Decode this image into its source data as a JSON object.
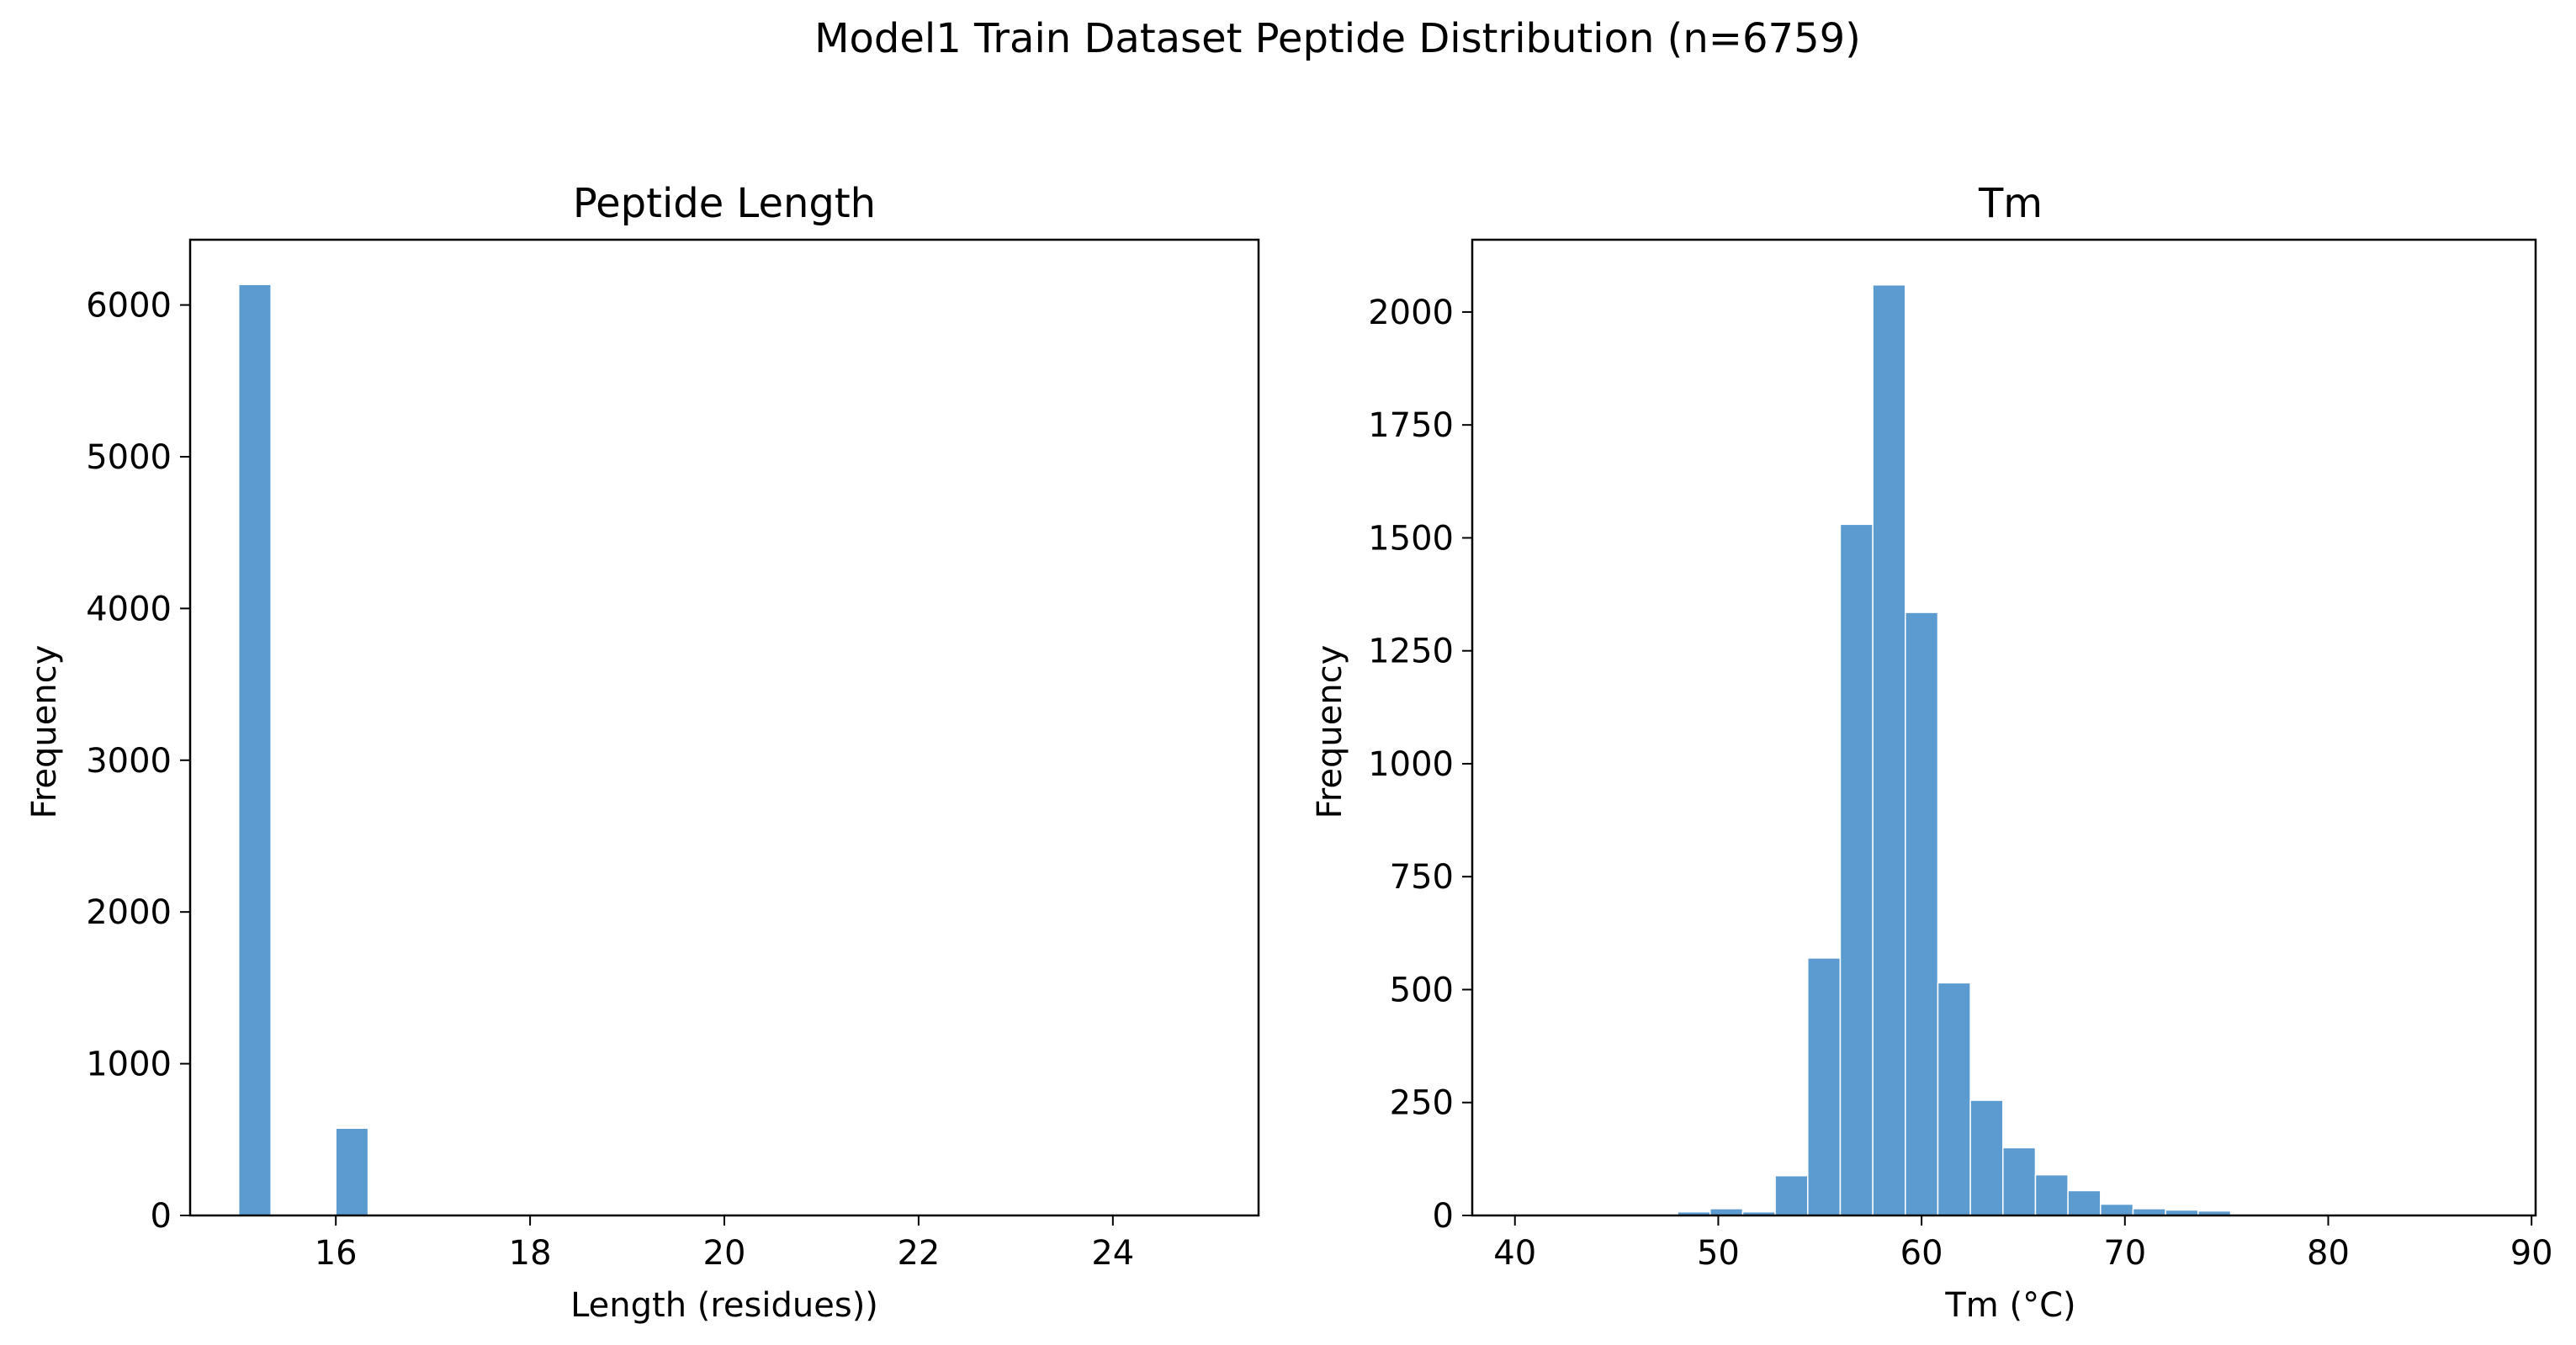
{
  "figure": {
    "suptitle": "Model1 Train Dataset Peptide Distribution (n=6759)"
  },
  "chart_data": [
    {
      "type": "bar",
      "subtype": "histogram",
      "title": "Peptide Length",
      "xlabel": "Length (residues))",
      "ylabel": "Frequency",
      "xlim": [
        14.5,
        25.5
      ],
      "ylim": [
        0,
        6430
      ],
      "xticks": [
        "16",
        "18",
        "20",
        "22",
        "24"
      ],
      "xtick_values": [
        16,
        18,
        20,
        22,
        24
      ],
      "yticks": [
        "0",
        "1000",
        "2000",
        "3000",
        "4000",
        "5000",
        "6000"
      ],
      "ytick_values": [
        0,
        1000,
        2000,
        3000,
        4000,
        5000,
        6000
      ],
      "bin_width": 0.333,
      "bins": [
        {
          "x": 15.0,
          "value": 6135
        },
        {
          "x": 16.0,
          "value": 575
        },
        {
          "x": 17.0,
          "value": 0
        },
        {
          "x": 18.0,
          "value": 0
        },
        {
          "x": 19.0,
          "value": 0
        },
        {
          "x": 20.0,
          "value": 10
        },
        {
          "x": 21.0,
          "value": 0
        },
        {
          "x": 22.0,
          "value": 0
        },
        {
          "x": 23.0,
          "value": 0
        },
        {
          "x": 24.0,
          "value": 0
        },
        {
          "x": 25.0,
          "value": 0
        }
      ],
      "bar_color": "#5b9bd0",
      "grid": false,
      "legend": "none"
    },
    {
      "type": "bar",
      "subtype": "histogram",
      "title": "Tm",
      "xlabel": "Tm (°C)",
      "ylabel": "Frequency",
      "xlim": [
        37.9,
        90.2
      ],
      "ylim": [
        0,
        2160
      ],
      "xticks": [
        "40",
        "50",
        "60",
        "70",
        "80",
        "90"
      ],
      "xtick_values": [
        40,
        50,
        60,
        70,
        80,
        90
      ],
      "yticks": [
        "0",
        "250",
        "500",
        "750",
        "1000",
        "1250",
        "1500",
        "1750",
        "2000"
      ],
      "ytick_values": [
        0,
        250,
        500,
        750,
        1000,
        1250,
        1500,
        1750,
        2000
      ],
      "bin_width": 1.6,
      "bins": [
        {
          "x": 40.0,
          "value": 1
        },
        {
          "x": 41.6,
          "value": 0
        },
        {
          "x": 43.2,
          "value": 0
        },
        {
          "x": 44.8,
          "value": 0
        },
        {
          "x": 46.4,
          "value": 2
        },
        {
          "x": 48.0,
          "value": 8
        },
        {
          "x": 49.6,
          "value": 15
        },
        {
          "x": 51.2,
          "value": 8
        },
        {
          "x": 52.8,
          "value": 88
        },
        {
          "x": 54.4,
          "value": 570
        },
        {
          "x": 56.0,
          "value": 1530
        },
        {
          "x": 57.6,
          "value": 2060
        },
        {
          "x": 59.2,
          "value": 1335
        },
        {
          "x": 60.8,
          "value": 515
        },
        {
          "x": 62.4,
          "value": 255
        },
        {
          "x": 64.0,
          "value": 150
        },
        {
          "x": 65.6,
          "value": 90
        },
        {
          "x": 67.2,
          "value": 55
        },
        {
          "x": 68.8,
          "value": 25
        },
        {
          "x": 70.4,
          "value": 15
        },
        {
          "x": 72.0,
          "value": 12
        },
        {
          "x": 73.6,
          "value": 10
        },
        {
          "x": 75.2,
          "value": 2
        },
        {
          "x": 76.8,
          "value": 1
        },
        {
          "x": 78.4,
          "value": 1
        },
        {
          "x": 80.0,
          "value": 0
        },
        {
          "x": 81.6,
          "value": 0
        },
        {
          "x": 83.2,
          "value": 0
        },
        {
          "x": 84.8,
          "value": 0
        },
        {
          "x": 86.4,
          "value": 1
        }
      ],
      "bar_color": "#5b9bd0",
      "grid": false,
      "legend": "none"
    }
  ]
}
